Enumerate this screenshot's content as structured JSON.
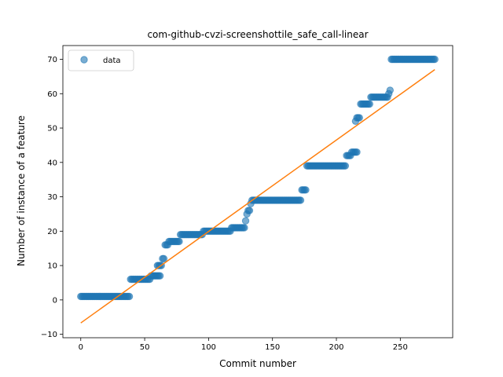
{
  "chart_data": {
    "type": "scatter",
    "title": "com-github-cvzi-screenshottile_safe_call-linear",
    "xlabel": "Commit number",
    "ylabel": "Number of instance of a feature",
    "xlim": [
      -14,
      291
    ],
    "ylim": [
      -11,
      74
    ],
    "xticks": [
      0,
      50,
      100,
      150,
      200,
      250
    ],
    "yticks": [
      -10,
      0,
      10,
      20,
      30,
      40,
      50,
      60,
      70
    ],
    "grid": false,
    "legend": {
      "position": "top-left",
      "entries": [
        "data"
      ]
    },
    "series": [
      {
        "name": "data",
        "kind": "scatter",
        "color": "#1f77b4",
        "segments": [
          {
            "x_start": 0,
            "x_end": 38,
            "y": 1
          },
          {
            "x_start": 39,
            "x_end": 54,
            "y": 6
          },
          {
            "x_start": 55,
            "x_end": 57,
            "y": 7
          },
          {
            "x_start": 58,
            "x_end": 62,
            "y": 7
          },
          {
            "x_start": 60,
            "x_end": 63,
            "y": 10
          },
          {
            "x_start": 64,
            "x_end": 65,
            "y": 12
          },
          {
            "x_start": 66,
            "x_end": 68,
            "y": 16
          },
          {
            "x_start": 69,
            "x_end": 77,
            "y": 17
          },
          {
            "x_start": 78,
            "x_end": 95,
            "y": 19
          },
          {
            "x_start": 96,
            "x_end": 117,
            "y": 20
          },
          {
            "x_start": 118,
            "x_end": 128,
            "y": 21
          },
          {
            "x_start": 129,
            "x_end": 129,
            "y": 23
          },
          {
            "x_start": 130,
            "x_end": 130,
            "y": 25
          },
          {
            "x_start": 131,
            "x_end": 132,
            "y": 26
          },
          {
            "x_start": 133,
            "x_end": 133,
            "y": 28
          },
          {
            "x_start": 134,
            "x_end": 172,
            "y": 29
          },
          {
            "x_start": 173,
            "x_end": 176,
            "y": 32
          },
          {
            "x_start": 177,
            "x_end": 207,
            "y": 39
          },
          {
            "x_start": 208,
            "x_end": 211,
            "y": 42
          },
          {
            "x_start": 212,
            "x_end": 216,
            "y": 43
          },
          {
            "x_start": 215,
            "x_end": 215,
            "y": 52
          },
          {
            "x_start": 216,
            "x_end": 218,
            "y": 53
          },
          {
            "x_start": 219,
            "x_end": 226,
            "y": 57
          },
          {
            "x_start": 227,
            "x_end": 240,
            "y": 59
          },
          {
            "x_start": 241,
            "x_end": 241,
            "y": 60
          },
          {
            "x_start": 242,
            "x_end": 242,
            "y": 61
          },
          {
            "x_start": 243,
            "x_end": 277,
            "y": 70
          }
        ]
      },
      {
        "name": "linear fit",
        "kind": "line",
        "color": "#ff7f0e",
        "x": [
          0,
          277
        ],
        "y": [
          -6.7,
          67
        ]
      }
    ]
  }
}
